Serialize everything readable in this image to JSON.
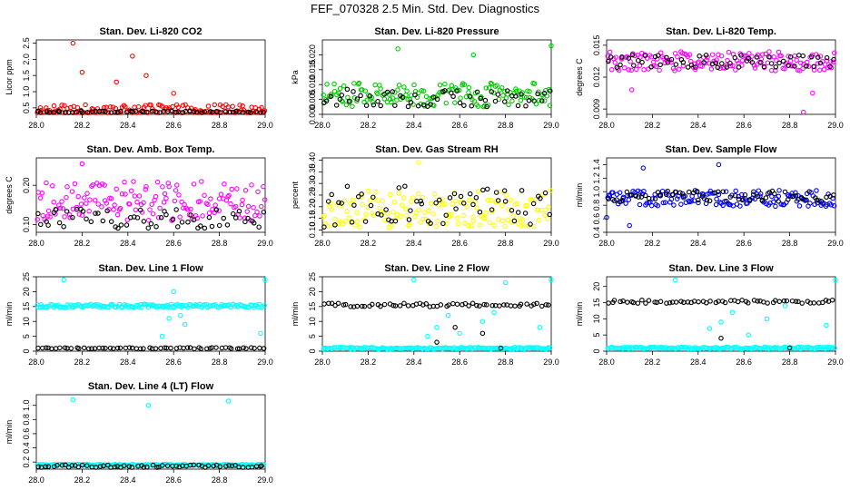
{
  "page": {
    "title": "FEF_070328  2.5 Min. Std. Dev. Diagnostics"
  },
  "colors": {
    "black": "#000000"
  },
  "chart_data": [
    {
      "type": "scatter",
      "title": "Stan. Dev. Li-820 CO2",
      "xlabel": "",
      "ylabel": "Licor ppm",
      "xlim": [
        28.0,
        29.0
      ],
      "ylim": [
        0.3,
        2.6
      ],
      "xticks": [
        "28.0",
        "28.2",
        "28.4",
        "28.6",
        "28.8",
        "29.0"
      ],
      "yticks": [
        "0.5",
        "1.0",
        "1.5",
        "2.0",
        "2.5"
      ],
      "series": [
        {
          "color": "#ff0000",
          "base": 0.42,
          "spread": 0.18,
          "outliers": [
            [
              28.16,
              2.5
            ],
            [
              28.42,
              2.1
            ],
            [
              28.48,
              1.5
            ],
            [
              28.6,
              0.95
            ],
            [
              28.2,
              1.6
            ],
            [
              28.35,
              1.3
            ]
          ]
        },
        {
          "color": "#000000",
          "base": 0.37,
          "spread": 0.03,
          "outliers": []
        }
      ]
    },
    {
      "type": "scatter",
      "title": "Stan. Dev. Li-820 Pressure",
      "xlabel": "",
      "ylabel": "kPa",
      "xlim": [
        28.0,
        29.0
      ],
      "ylim": [
        0.0,
        0.025
      ],
      "xticks": [
        "28.0",
        "28.2",
        "28.4",
        "28.6",
        "28.8",
        "29.0"
      ],
      "yticks": [
        "0.000",
        "0.005",
        "0.010",
        "0.015",
        "0.020"
      ],
      "series": [
        {
          "color": "#00cc00",
          "base": 0.0065,
          "spread": 0.004,
          "outliers": [
            [
              28.33,
              0.022
            ],
            [
              28.66,
              0.02
            ],
            [
              29.0,
              0.023
            ]
          ]
        },
        {
          "color": "#000000",
          "base": 0.0055,
          "spread": 0.003,
          "outliers": []
        }
      ]
    },
    {
      "type": "scatter",
      "title": "Stan. Dev. Li-820 Temp.",
      "xlabel": "",
      "ylabel": "degrees C",
      "xlim": [
        28.0,
        29.0
      ],
      "ylim": [
        0.0085,
        0.0155
      ],
      "xticks": [
        "28.0",
        "28.2",
        "28.4",
        "28.6",
        "28.8",
        "29.0"
      ],
      "yticks": [
        "0.009",
        "0.012",
        "0.015"
      ],
      "series": [
        {
          "color": "#ff00ff",
          "base": 0.0135,
          "spread": 0.0009,
          "outliers": [
            [
              28.11,
              0.0108
            ],
            [
              28.86,
              0.0087
            ],
            [
              28.9,
              0.0105
            ]
          ]
        },
        {
          "color": "#000000",
          "base": 0.0135,
          "spread": 0.0006,
          "outliers": []
        }
      ]
    },
    {
      "type": "scatter",
      "title": "Stan. Dev. Amb. Box Temp.",
      "xlabel": "",
      "ylabel": "degrees C",
      "xlim": [
        28.0,
        29.0
      ],
      "ylim": [
        0.08,
        0.27
      ],
      "xticks": [
        "28.0",
        "28.2",
        "28.4",
        "28.6",
        "28.8",
        "29.0"
      ],
      "yticks": [
        "0.10",
        "0.20"
      ],
      "series": [
        {
          "color": "#ff00ff",
          "base": 0.16,
          "spread": 0.05,
          "outliers": [
            [
              28.2,
              0.255
            ]
          ]
        },
        {
          "color": "#000000",
          "base": 0.115,
          "spread": 0.025,
          "outliers": []
        }
      ]
    },
    {
      "type": "scatter",
      "title": "Stan. Dev. Gas Stream RH",
      "xlabel": "",
      "ylabel": "percent",
      "xlim": [
        28.0,
        29.0
      ],
      "ylim": [
        0.09,
        0.41
      ],
      "xticks": [
        "28.0",
        "28.2",
        "28.4",
        "28.6",
        "28.8",
        "29.0"
      ],
      "yticks": [
        "0.10",
        "0.15",
        "0.20",
        "0.25",
        "0.30",
        "0.35",
        "0.40"
      ],
      "series": [
        {
          "color": "#ffff00",
          "base": 0.19,
          "spread": 0.08,
          "outliers": [
            [
              28.42,
              0.39
            ]
          ]
        },
        {
          "color": "#000000",
          "base": 0.2,
          "spread": 0.09,
          "outliers": []
        }
      ]
    },
    {
      "type": "scatter",
      "title": "Stan. Dev. Sample Flow",
      "xlabel": "",
      "ylabel": "ml/min",
      "xlim": [
        28.0,
        29.0
      ],
      "ylim": [
        0.4,
        1.5
      ],
      "xticks": [
        "28.0",
        "28.2",
        "28.4",
        "28.6",
        "28.8",
        "29.0"
      ],
      "yticks": [
        "0.4",
        "0.6",
        "0.8",
        "1.0",
        "1.2",
        "1.4"
      ],
      "series": [
        {
          "color": "#0000ff",
          "base": 0.9,
          "spread": 0.12,
          "outliers": [
            [
              28.16,
              1.35
            ],
            [
              28.49,
              1.4
            ],
            [
              28.1,
              0.5
            ],
            [
              28.0,
              0.62
            ]
          ]
        },
        {
          "color": "#000000",
          "base": 0.93,
          "spread": 0.08,
          "outliers": []
        }
      ]
    },
    {
      "type": "scatter",
      "title": "Stan. Dev. Line 1 Flow",
      "xlabel": "",
      "ylabel": "ml/min",
      "xlim": [
        28.0,
        29.0
      ],
      "ylim": [
        0,
        25
      ],
      "xticks": [
        "28.0",
        "28.2",
        "28.4",
        "28.6",
        "28.8",
        "29.0"
      ],
      "yticks": [
        "0",
        "5",
        "10",
        "15",
        "20",
        "25"
      ],
      "series": [
        {
          "color": "#00ffff",
          "base": 15.2,
          "spread": 0.6,
          "outliers": [
            [
              28.12,
              24
            ],
            [
              28.55,
              5
            ],
            [
              28.65,
              9
            ],
            [
              28.98,
              6
            ],
            [
              29.0,
              24
            ],
            [
              28.6,
              20
            ],
            [
              28.63,
              12
            ],
            [
              28.58,
              11
            ]
          ]
        },
        {
          "color": "#000000",
          "base": 1.0,
          "spread": 0.2,
          "outliers": []
        }
      ]
    },
    {
      "type": "scatter",
      "title": "Stan. Dev. Line 2 Flow",
      "xlabel": "",
      "ylabel": "ml/min",
      "xlim": [
        28.0,
        29.0
      ],
      "ylim": [
        0,
        25
      ],
      "xticks": [
        "28.0",
        "28.2",
        "28.4",
        "28.6",
        "28.8",
        "29.0"
      ],
      "yticks": [
        "0",
        "5",
        "10",
        "15",
        "20",
        "25"
      ],
      "series": [
        {
          "color": "#00ffff",
          "base": 1.0,
          "spread": 0.3,
          "outliers": [
            [
              28.46,
              5
            ],
            [
              28.5,
              8
            ],
            [
              28.55,
              12
            ],
            [
              28.6,
              6
            ],
            [
              28.7,
              10
            ],
            [
              28.75,
              13
            ],
            [
              28.95,
              8
            ],
            [
              29.0,
              24
            ],
            [
              28.4,
              24
            ],
            [
              28.8,
              23
            ]
          ]
        },
        {
          "color": "#000000",
          "base": 15.5,
          "spread": 0.6,
          "outliers": [
            [
              28.5,
              3
            ],
            [
              28.58,
              8
            ],
            [
              28.7,
              6
            ],
            [
              28.78,
              1
            ]
          ]
        }
      ]
    },
    {
      "type": "scatter",
      "title": "Stan. Dev. Line 3 Flow",
      "xlabel": "",
      "ylabel": "ml/min",
      "xlim": [
        28.0,
        29.0
      ],
      "ylim": [
        0,
        23
      ],
      "xticks": [
        "28.0",
        "28.2",
        "28.4",
        "28.6",
        "28.8",
        "29.0"
      ],
      "yticks": [
        "0",
        "5",
        "10",
        "15",
        "20"
      ],
      "series": [
        {
          "color": "#00ffff",
          "base": 1.0,
          "spread": 0.3,
          "outliers": [
            [
              28.45,
              7
            ],
            [
              28.5,
              9
            ],
            [
              28.55,
              12
            ],
            [
              28.62,
              5
            ],
            [
              28.7,
              10
            ],
            [
              28.78,
              14
            ],
            [
              28.96,
              8
            ],
            [
              29.0,
              22
            ],
            [
              28.3,
              22
            ]
          ]
        },
        {
          "color": "#000000",
          "base": 15.3,
          "spread": 0.5,
          "outliers": [
            [
              28.5,
              4
            ],
            [
              28.8,
              1
            ]
          ]
        }
      ]
    },
    {
      "type": "scatter",
      "title": "Stan. Dev. Line 4 (LT) Flow",
      "xlabel": "",
      "ylabel": "ml/min",
      "xlim": [
        28.0,
        29.0
      ],
      "ylim": [
        0.1,
        1.15
      ],
      "xticks": [
        "28.0",
        "28.2",
        "28.4",
        "28.6",
        "28.8",
        "29.0"
      ],
      "yticks": [
        "0.2",
        "0.4",
        "0.6",
        "0.8",
        "1.0"
      ],
      "series": [
        {
          "color": "#00ffff",
          "base": 0.16,
          "spread": 0.01,
          "outliers": [
            [
              28.16,
              1.08
            ],
            [
              28.49,
              1.0
            ],
            [
              28.84,
              1.06
            ]
          ]
        },
        {
          "color": "#000000",
          "base": 0.14,
          "spread": 0.02,
          "outliers": []
        }
      ]
    }
  ]
}
